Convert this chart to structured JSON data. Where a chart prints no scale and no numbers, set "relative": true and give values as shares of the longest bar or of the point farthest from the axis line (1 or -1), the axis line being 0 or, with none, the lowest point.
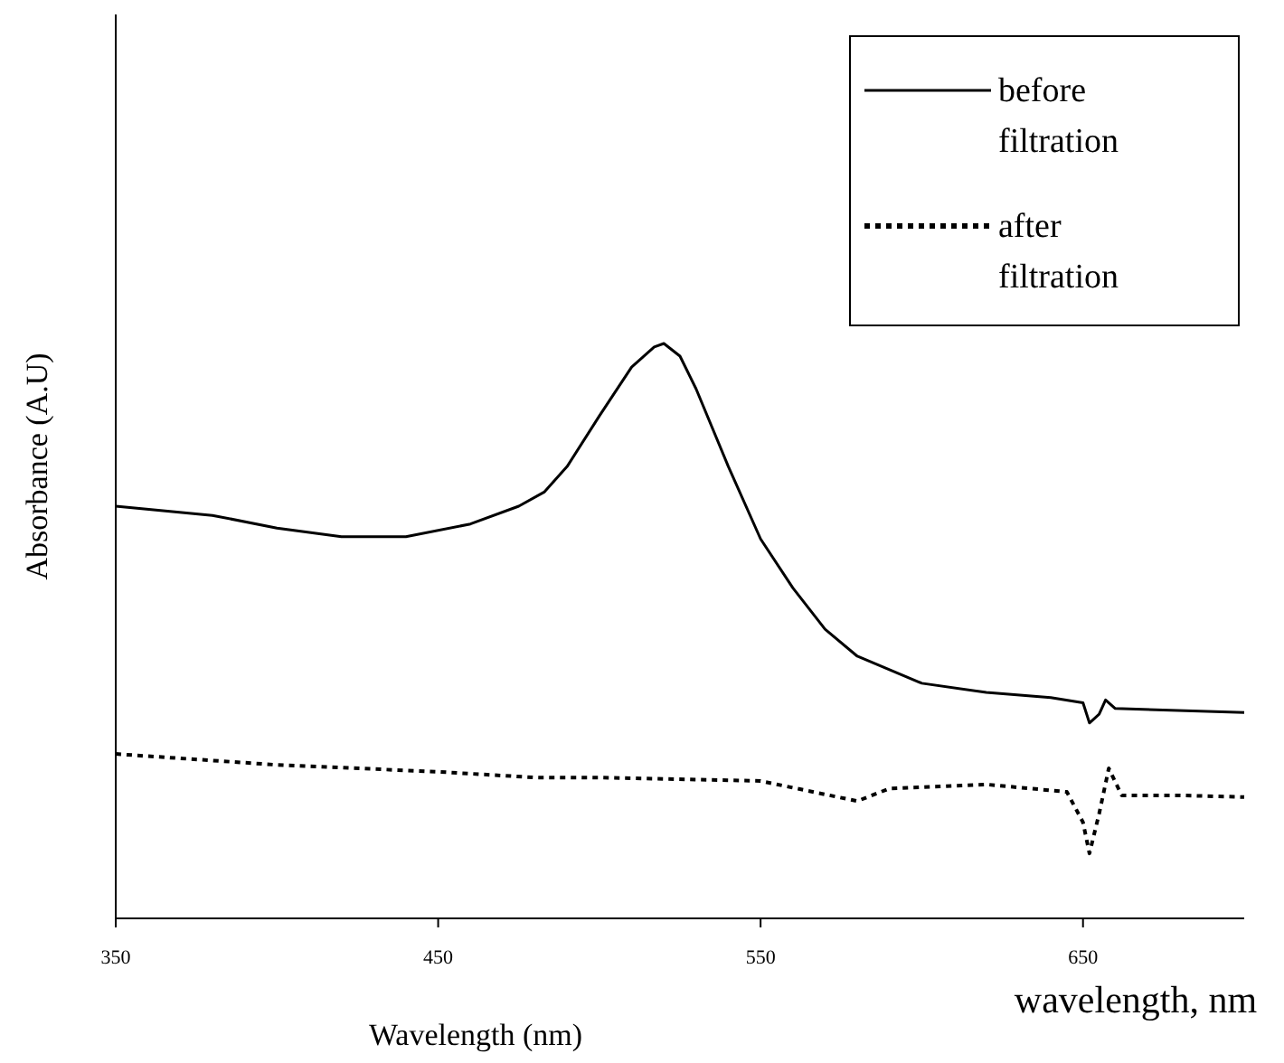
{
  "chart_data": {
    "type": "line",
    "relative": true,
    "xlabel": "Wavelength (nm)",
    "ylabel": "Absorbance (A.U)",
    "annotations": [
      "wavelength, nm"
    ],
    "xlim": [
      350,
      700
    ],
    "xticks": [
      350,
      450,
      550,
      650
    ],
    "legend": "top right",
    "grid": false,
    "series": [
      {
        "name": "before filtration",
        "color": "#000000",
        "line_style": "solid",
        "x": [
          350,
          380,
          400,
          420,
          440,
          460,
          475,
          483,
          490,
          500,
          510,
          517,
          520,
          525,
          530,
          540,
          550,
          560,
          570,
          580,
          600,
          620,
          640,
          650,
          652,
          655,
          657,
          660,
          700
        ],
        "values": [
          0.717,
          0.701,
          0.679,
          0.664,
          0.664,
          0.686,
          0.717,
          0.742,
          0.786,
          0.874,
          0.959,
          0.994,
          1,
          0.978,
          0.921,
          0.786,
          0.66,
          0.575,
          0.503,
          0.456,
          0.409,
          0.393,
          0.384,
          0.375,
          0.34,
          0.355,
          0.38,
          0.365,
          0.358
        ]
      },
      {
        "name": "after filtration",
        "color": "#000000",
        "line_style": "dotted",
        "x": [
          350,
          400,
          450,
          480,
          500,
          550,
          580,
          590,
          620,
          645,
          650,
          652,
          655,
          658,
          662,
          680,
          700
        ],
        "values": [
          0.286,
          0.267,
          0.255,
          0.245,
          0.245,
          0.239,
          0.204,
          0.226,
          0.233,
          0.22,
          0.167,
          0.113,
          0.182,
          0.261,
          0.214,
          0.214,
          0.211
        ]
      }
    ]
  }
}
